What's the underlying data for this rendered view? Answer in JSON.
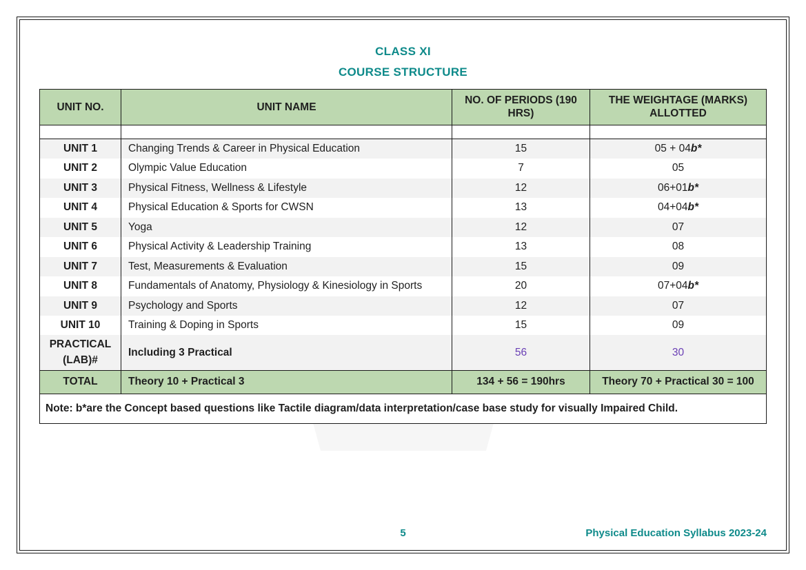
{
  "heading": {
    "line1": "CLASS XI",
    "line2": "COURSE STRUCTURE"
  },
  "columns": {
    "unit_no": "UNIT NO.",
    "unit_name": "UNIT NAME",
    "periods": "NO. OF PERIODS (190 HRS)",
    "weightage": "THE WEIGHTAGE (MARKS) ALLOTTED"
  },
  "rows": [
    {
      "unit": "UNIT 1",
      "name": "Changing Trends & Career in Physical Education",
      "periods": "15",
      "weight_pre": "05 + 04",
      "weight_b": "b*",
      "even": true
    },
    {
      "unit": "UNIT 2",
      "name": "Olympic Value Education",
      "periods": "7",
      "weight_pre": "05",
      "weight_b": "",
      "even": false
    },
    {
      "unit": "UNIT 3",
      "name": "Physical Fitness, Wellness & Lifestyle",
      "periods": "12",
      "weight_pre": "06+01",
      "weight_b": "b*",
      "even": true
    },
    {
      "unit": "UNIT 4",
      "name": "Physical Education & Sports for CWSN",
      "periods": "13",
      "weight_pre": "04+04",
      "weight_b": "b*",
      "even": false
    },
    {
      "unit": "UNIT 5",
      "name": "Yoga",
      "periods": "12",
      "weight_pre": "07",
      "weight_b": "",
      "even": true
    },
    {
      "unit": "UNIT 6",
      "name": "Physical Activity & Leadership Training",
      "periods": "13",
      "weight_pre": "08",
      "weight_b": "",
      "even": false
    },
    {
      "unit": "UNIT 7",
      "name": "Test, Measurements & Evaluation",
      "periods": "15",
      "weight_pre": "09",
      "weight_b": "",
      "even": true
    },
    {
      "unit": "UNIT 8",
      "name": "Fundamentals of Anatomy, Physiology & Kinesiology in Sports",
      "periods": "20",
      "weight_pre": "07+04",
      "weight_b": "b*",
      "even": false
    },
    {
      "unit": "UNIT 9",
      "name": "Psychology and Sports",
      "periods": "12",
      "weight_pre": "07",
      "weight_b": "",
      "even": true
    },
    {
      "unit": "UNIT 10",
      "name": "Training & Doping in Sports",
      "periods": "15",
      "weight_pre": "09",
      "weight_b": "",
      "even": false
    }
  ],
  "practical": {
    "unit": "PRACTICAL (LAB)#",
    "name": "Including 3 Practical",
    "periods": "56",
    "weight": "30"
  },
  "total": {
    "label": "TOTAL",
    "name": "Theory 10 + Practical 3",
    "periods": "134 + 56 = 190hrs",
    "weight": "Theory 70 + Practical 30 = 100"
  },
  "note": "Note: b*are the Concept based questions like Tactile diagram/data interpretation/case base study for visually Impaired Child.",
  "footer": {
    "page": "5",
    "right": "Physical Education Syllabus 2023-24"
  },
  "colors": {
    "accent": "#0e8a8a",
    "header_bg": "#bdd8b0",
    "row_even": "#f2f2f2",
    "row_odd": "#ffffff",
    "border": "#1a1a1a",
    "text": "#1f1f1f",
    "purple": "#6a3fb5"
  }
}
